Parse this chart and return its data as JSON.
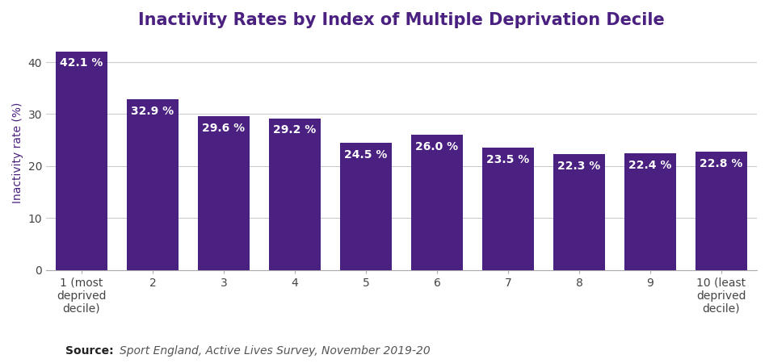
{
  "title": "Inactivity Rates by Index of Multiple Deprivation Decile",
  "ylabel": "Inactivity rate (%)",
  "categories": [
    "1 (most\ndeprived\ndecile)",
    "2",
    "3",
    "4",
    "5",
    "6",
    "7",
    "8",
    "9",
    "10 (least\ndeprived\ndecile)"
  ],
  "values": [
    42.1,
    32.9,
    29.6,
    29.2,
    24.5,
    26.0,
    23.5,
    22.3,
    22.4,
    22.8
  ],
  "labels": [
    "42.1 %",
    "32.9 %",
    "29.6 %",
    "29.2 %",
    "24.5 %",
    "26.0 %",
    "23.5 %",
    "22.3 %",
    "22.4 %",
    "22.8 %"
  ],
  "bar_color": "#4a2080",
  "title_color": "#4a2080",
  "label_color": "#ffffff",
  "source_bold": "Source:",
  "source_italic": "  Sport England, Active Lives Survey, November 2019-20",
  "ylim": [
    0,
    45
  ],
  "yticks": [
    0,
    10,
    20,
    30,
    40
  ],
  "grid_color": "#cccccc",
  "background_color": "#ffffff",
  "title_fontsize": 15,
  "axis_label_fontsize": 10,
  "bar_label_fontsize": 10,
  "tick_label_fontsize": 10,
  "source_fontsize": 10
}
